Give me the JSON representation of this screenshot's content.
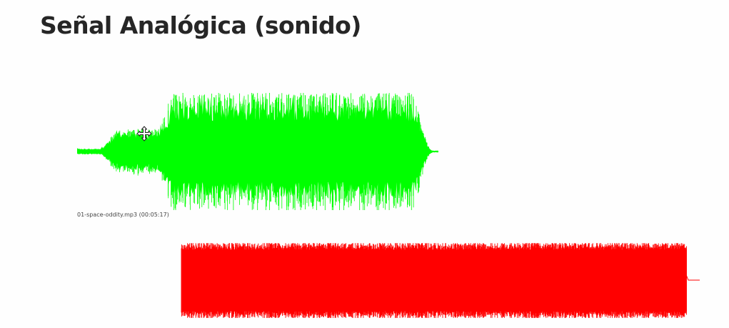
{
  "slide": {
    "title": "Señal Analógica (sonido)"
  },
  "audio_file": {
    "caption": "01-space-oddity.mp3 (00:05:17)"
  },
  "waveforms": {
    "original_color": "#00ff00",
    "digital_color": "#ff0000"
  },
  "icons": {
    "cursor": "move-cursor-icon"
  }
}
